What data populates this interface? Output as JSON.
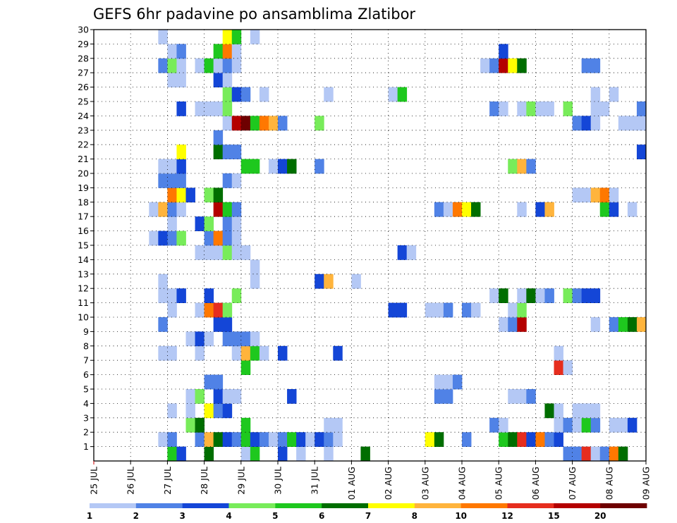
{
  "chart_data": {
    "type": "heatmap",
    "title": "GEFS 6hr padavine po ansamblima Zlatibor",
    "y_ticks": [
      "1",
      "2",
      "3",
      "4",
      "5",
      "6",
      "7",
      "8",
      "9",
      "10",
      "11",
      "12",
      "13",
      "14",
      "15",
      "16",
      "17",
      "18",
      "19",
      "20",
      "21",
      "22",
      "23",
      "24",
      "25",
      "26",
      "27",
      "28",
      "29",
      "30"
    ],
    "x_ticks": [
      "25 JUL",
      "26 JUL",
      "27 JUL",
      "28 JUL",
      "29 JUL",
      "30 JUL",
      "31 JUL",
      "01 AUG",
      "02 AUG",
      "03 AUG",
      "04 AUG",
      "05 AUG",
      "06 AUG",
      "07 AUG",
      "08 AUG",
      "09 AUG"
    ],
    "x_range_steps": [
      0,
      60
    ],
    "y_range": [
      0,
      30
    ],
    "grid": true,
    "legend": {
      "position": "bottom",
      "labels": [
        "1",
        "2",
        "3",
        "4",
        "5",
        "6",
        "7",
        "8",
        "10",
        "12",
        "15",
        "20"
      ],
      "colors": [
        "#b4c8f5",
        "#5082e6",
        "#1446d7",
        "#78ec5a",
        "#1ec81e",
        "#006e00",
        "#ffff00",
        "#ffb43c",
        "#ff7800",
        "#e62d1e",
        "#b40000",
        "#6e0000"
      ]
    },
    "cells": [
      [
        1,
        9,
        5
      ],
      [
        1,
        10,
        3
      ],
      [
        1,
        13,
        6
      ],
      [
        1,
        17,
        1
      ],
      [
        1,
        18,
        5
      ],
      [
        1,
        21,
        3
      ],
      [
        1,
        23,
        1
      ],
      [
        1,
        26,
        1
      ],
      [
        1,
        30,
        6
      ],
      [
        1,
        52,
        2
      ],
      [
        1,
        53,
        2
      ],
      [
        1,
        54,
        12
      ],
      [
        1,
        55,
        1
      ],
      [
        1,
        56,
        2
      ],
      [
        1,
        57,
        10
      ],
      [
        1,
        58,
        6
      ],
      [
        2,
        8,
        1
      ],
      [
        2,
        9,
        2
      ],
      [
        2,
        12,
        2
      ],
      [
        2,
        13,
        8
      ],
      [
        2,
        14,
        6
      ],
      [
        2,
        15,
        3
      ],
      [
        2,
        16,
        2
      ],
      [
        2,
        17,
        5
      ],
      [
        2,
        18,
        3
      ],
      [
        2,
        19,
        2
      ],
      [
        2,
        20,
        1
      ],
      [
        2,
        21,
        2
      ],
      [
        2,
        22,
        5
      ],
      [
        2,
        23,
        3
      ],
      [
        2,
        24,
        1
      ],
      [
        2,
        25,
        3
      ],
      [
        2,
        26,
        2
      ],
      [
        2,
        27,
        1
      ],
      [
        2,
        37,
        7
      ],
      [
        2,
        38,
        6
      ],
      [
        2,
        41,
        2
      ],
      [
        2,
        45,
        5
      ],
      [
        2,
        46,
        6
      ],
      [
        2,
        47,
        12
      ],
      [
        2,
        48,
        3
      ],
      [
        2,
        49,
        10
      ],
      [
        2,
        50,
        2
      ],
      [
        2,
        51,
        3
      ],
      [
        3,
        11,
        4
      ],
      [
        3,
        12,
        6
      ],
      [
        3,
        17,
        5
      ],
      [
        3,
        26,
        1
      ],
      [
        3,
        27,
        1
      ],
      [
        3,
        44,
        2
      ],
      [
        3,
        45,
        1
      ],
      [
        3,
        51,
        1
      ],
      [
        3,
        52,
        2
      ],
      [
        3,
        53,
        1
      ],
      [
        3,
        54,
        5
      ],
      [
        3,
        55,
        2
      ],
      [
        3,
        57,
        1
      ],
      [
        3,
        58,
        1
      ],
      [
        3,
        59,
        3
      ],
      [
        4,
        9,
        1
      ],
      [
        4,
        11,
        1
      ],
      [
        4,
        13,
        7
      ],
      [
        4,
        14,
        2
      ],
      [
        4,
        15,
        3
      ],
      [
        4,
        50,
        6
      ],
      [
        4,
        51,
        1
      ],
      [
        4,
        53,
        1
      ],
      [
        4,
        54,
        1
      ],
      [
        4,
        55,
        1
      ],
      [
        5,
        11,
        1
      ],
      [
        5,
        12,
        4
      ],
      [
        5,
        14,
        3
      ],
      [
        5,
        15,
        1
      ],
      [
        5,
        16,
        1
      ],
      [
        5,
        22,
        3
      ],
      [
        5,
        38,
        2
      ],
      [
        5,
        39,
        2
      ],
      [
        5,
        46,
        1
      ],
      [
        5,
        47,
        1
      ],
      [
        5,
        48,
        2
      ],
      [
        6,
        13,
        2
      ],
      [
        6,
        14,
        2
      ],
      [
        6,
        38,
        1
      ],
      [
        6,
        39,
        1
      ],
      [
        6,
        40,
        2
      ],
      [
        7,
        17,
        5
      ],
      [
        7,
        51,
        12
      ],
      [
        7,
        52,
        1
      ],
      [
        8,
        8,
        1
      ],
      [
        8,
        9,
        1
      ],
      [
        8,
        12,
        1
      ],
      [
        8,
        16,
        1
      ],
      [
        8,
        17,
        8
      ],
      [
        8,
        18,
        5
      ],
      [
        8,
        19,
        1
      ],
      [
        8,
        21,
        3
      ],
      [
        8,
        27,
        3
      ],
      [
        8,
        51,
        1
      ],
      [
        9,
        11,
        1
      ],
      [
        9,
        12,
        3
      ],
      [
        9,
        13,
        1
      ],
      [
        9,
        15,
        2
      ],
      [
        9,
        16,
        2
      ],
      [
        9,
        17,
        2
      ],
      [
        9,
        18,
        1
      ],
      [
        10,
        8,
        2
      ],
      [
        10,
        14,
        3
      ],
      [
        10,
        15,
        3
      ],
      [
        10,
        45,
        1
      ],
      [
        10,
        46,
        2
      ],
      [
        10,
        47,
        15
      ],
      [
        10,
        55,
        1
      ],
      [
        10,
        57,
        2
      ],
      [
        10,
        58,
        5
      ],
      [
        10,
        59,
        6
      ],
      [
        10,
        60,
        8
      ],
      [
        11,
        9,
        1
      ],
      [
        11,
        12,
        1
      ],
      [
        11,
        13,
        10
      ],
      [
        11,
        14,
        12
      ],
      [
        11,
        15,
        4
      ],
      [
        11,
        33,
        3
      ],
      [
        11,
        34,
        3
      ],
      [
        11,
        37,
        1
      ],
      [
        11,
        38,
        1
      ],
      [
        11,
        39,
        2
      ],
      [
        11,
        41,
        2
      ],
      [
        11,
        42,
        1
      ],
      [
        11,
        46,
        1
      ],
      [
        11,
        47,
        4
      ],
      [
        12,
        8,
        1
      ],
      [
        12,
        9,
        1
      ],
      [
        12,
        10,
        3
      ],
      [
        12,
        13,
        3
      ],
      [
        12,
        16,
        4
      ],
      [
        12,
        44,
        1
      ],
      [
        12,
        45,
        6
      ],
      [
        12,
        47,
        1
      ],
      [
        12,
        48,
        6
      ],
      [
        12,
        49,
        1
      ],
      [
        12,
        50,
        2
      ],
      [
        12,
        52,
        4
      ],
      [
        12,
        53,
        2
      ],
      [
        12,
        54,
        3
      ],
      [
        12,
        55,
        3
      ],
      [
        13,
        8,
        1
      ],
      [
        13,
        18,
        1
      ],
      [
        13,
        25,
        3
      ],
      [
        13,
        26,
        8
      ],
      [
        13,
        29,
        1
      ],
      [
        14,
        18,
        1
      ],
      [
        15,
        12,
        1
      ],
      [
        15,
        13,
        1
      ],
      [
        15,
        14,
        1
      ],
      [
        15,
        15,
        4
      ],
      [
        15,
        16,
        1
      ],
      [
        15,
        17,
        1
      ],
      [
        15,
        34,
        3
      ],
      [
        15,
        35,
        1
      ],
      [
        16,
        7,
        1
      ],
      [
        16,
        8,
        3
      ],
      [
        16,
        9,
        2
      ],
      [
        16,
        10,
        4
      ],
      [
        16,
        13,
        2
      ],
      [
        16,
        14,
        10
      ],
      [
        16,
        15,
        2
      ],
      [
        16,
        16,
        1
      ],
      [
        17,
        9,
        1
      ],
      [
        17,
        12,
        3
      ],
      [
        17,
        13,
        4
      ],
      [
        17,
        15,
        2
      ],
      [
        17,
        16,
        1
      ],
      [
        18,
        7,
        1
      ],
      [
        18,
        8,
        8
      ],
      [
        18,
        9,
        2
      ],
      [
        18,
        10,
        1
      ],
      [
        18,
        14,
        15
      ],
      [
        18,
        15,
        5
      ],
      [
        18,
        16,
        2
      ],
      [
        18,
        38,
        2
      ],
      [
        18,
        39,
        1
      ],
      [
        18,
        40,
        10
      ],
      [
        18,
        41,
        7
      ],
      [
        18,
        42,
        6
      ],
      [
        18,
        47,
        1
      ],
      [
        18,
        49,
        3
      ],
      [
        18,
        50,
        8
      ],
      [
        18,
        56,
        5
      ],
      [
        18,
        57,
        3
      ],
      [
        18,
        59,
        1
      ],
      [
        19,
        9,
        10
      ],
      [
        19,
        10,
        7
      ],
      [
        19,
        11,
        3
      ],
      [
        19,
        13,
        4
      ],
      [
        19,
        14,
        6
      ],
      [
        19,
        53,
        1
      ],
      [
        19,
        54,
        1
      ],
      [
        19,
        55,
        8
      ],
      [
        19,
        56,
        10
      ],
      [
        19,
        57,
        1
      ],
      [
        20,
        8,
        2
      ],
      [
        20,
        9,
        2
      ],
      [
        20,
        10,
        2
      ],
      [
        20,
        15,
        2
      ],
      [
        20,
        16,
        1
      ],
      [
        21,
        8,
        1
      ],
      [
        21,
        9,
        1
      ],
      [
        21,
        10,
        3
      ],
      [
        21,
        17,
        5
      ],
      [
        21,
        18,
        5
      ],
      [
        21,
        20,
        1
      ],
      [
        21,
        21,
        3
      ],
      [
        21,
        22,
        6
      ],
      [
        21,
        25,
        2
      ],
      [
        21,
        46,
        4
      ],
      [
        21,
        47,
        8
      ],
      [
        21,
        48,
        2
      ],
      [
        22,
        10,
        7
      ],
      [
        22,
        14,
        6
      ],
      [
        22,
        15,
        2
      ],
      [
        22,
        16,
        2
      ],
      [
        22,
        60,
        3
      ],
      [
        23,
        14,
        2
      ],
      [
        24,
        15,
        1
      ],
      [
        24,
        16,
        15
      ],
      [
        24,
        17,
        20
      ],
      [
        24,
        18,
        5
      ],
      [
        24,
        19,
        10
      ],
      [
        24,
        20,
        8
      ],
      [
        24,
        21,
        2
      ],
      [
        24,
        25,
        4
      ],
      [
        24,
        53,
        2
      ],
      [
        24,
        54,
        3
      ],
      [
        24,
        55,
        1
      ],
      [
        24,
        58,
        1
      ],
      [
        24,
        59,
        1
      ],
      [
        24,
        60,
        1
      ],
      [
        25,
        10,
        3
      ],
      [
        25,
        12,
        1
      ],
      [
        25,
        13,
        1
      ],
      [
        25,
        14,
        1
      ],
      [
        25,
        15,
        4
      ],
      [
        25,
        44,
        2
      ],
      [
        25,
        45,
        1
      ],
      [
        25,
        47,
        1
      ],
      [
        25,
        48,
        4
      ],
      [
        25,
        49,
        1
      ],
      [
        25,
        50,
        1
      ],
      [
        25,
        52,
        4
      ],
      [
        25,
        55,
        1
      ],
      [
        25,
        56,
        1
      ],
      [
        25,
        60,
        2
      ],
      [
        26,
        15,
        4
      ],
      [
        26,
        16,
        3
      ],
      [
        26,
        17,
        2
      ],
      [
        26,
        19,
        1
      ],
      [
        26,
        26,
        1
      ],
      [
        26,
        33,
        1
      ],
      [
        26,
        34,
        5
      ],
      [
        26,
        55,
        1
      ],
      [
        26,
        57,
        1
      ],
      [
        27,
        9,
        1
      ],
      [
        27,
        10,
        1
      ],
      [
        27,
        14,
        3
      ],
      [
        27,
        15,
        1
      ],
      [
        28,
        8,
        2
      ],
      [
        28,
        9,
        4
      ],
      [
        28,
        10,
        1
      ],
      [
        28,
        12,
        1
      ],
      [
        28,
        13,
        5
      ],
      [
        28,
        14,
        1
      ],
      [
        28,
        15,
        2
      ],
      [
        28,
        16,
        1
      ],
      [
        28,
        43,
        1
      ],
      [
        28,
        44,
        2
      ],
      [
        28,
        45,
        15
      ],
      [
        28,
        46,
        7
      ],
      [
        28,
        47,
        6
      ],
      [
        28,
        54,
        2
      ],
      [
        28,
        55,
        2
      ],
      [
        29,
        9,
        1
      ],
      [
        29,
        10,
        2
      ],
      [
        29,
        14,
        5
      ],
      [
        29,
        15,
        10
      ],
      [
        29,
        16,
        1
      ],
      [
        29,
        45,
        3
      ],
      [
        30,
        8,
        1
      ],
      [
        30,
        15,
        7
      ],
      [
        30,
        16,
        5
      ],
      [
        30,
        18,
        1
      ]
    ]
  }
}
